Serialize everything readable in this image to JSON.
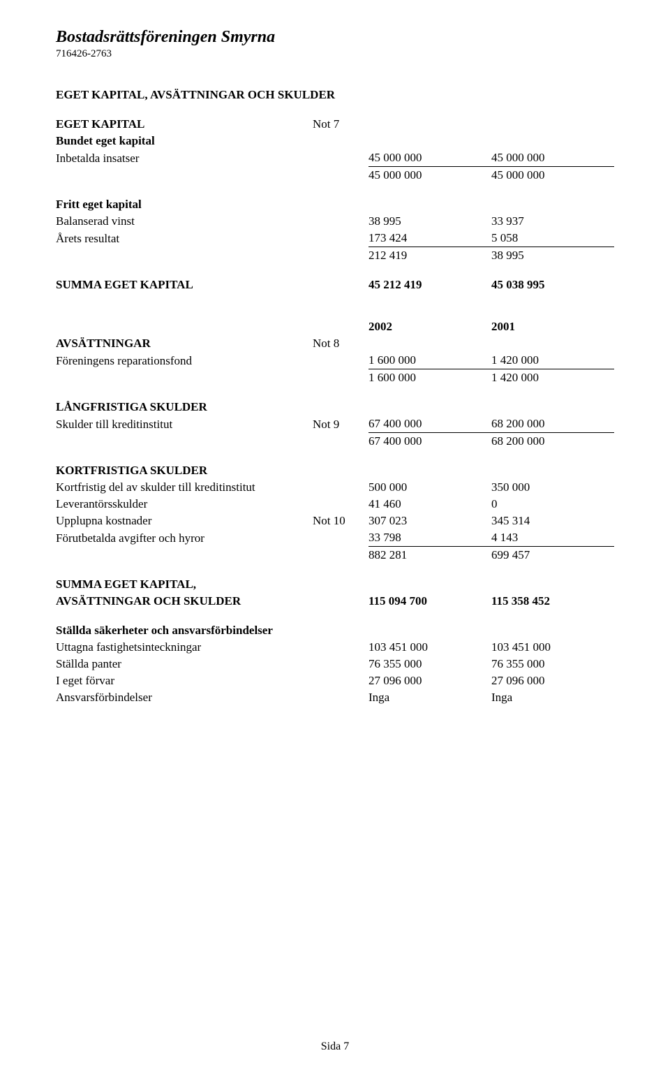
{
  "header": {
    "org_name": "Bostadsrättsföreningen Smyrna",
    "org_number": "716426-2763"
  },
  "title": "EGET KAPITAL, AVSÄTTNINGAR OCH SKULDER",
  "eget_kapital": {
    "heading": "EGET KAPITAL",
    "note": "Not 7",
    "bundet": {
      "heading": "Bundet eget kapital",
      "rows": [
        {
          "label": "Inbetalda insatser",
          "v1": "45 000 000",
          "v2": "45 000 000"
        }
      ],
      "sum": {
        "v1": "45 000 000",
        "v2": "45 000 000"
      }
    },
    "fritt": {
      "heading": "Fritt eget kapital",
      "rows": [
        {
          "label": "Balanserad vinst",
          "v1": "38 995",
          "v2": "33 937"
        },
        {
          "label": "Årets resultat",
          "v1": "173 424",
          "v2": "5 058"
        }
      ],
      "sum": {
        "v1": "212 419",
        "v2": "38 995"
      }
    },
    "summa": {
      "label": "SUMMA EGET KAPITAL",
      "v1": "45 212 419",
      "v2": "45 038 995"
    }
  },
  "avsattningar": {
    "year_row": {
      "v1": "2002",
      "v2": "2001"
    },
    "heading": "AVSÄTTNINGAR",
    "note": "Not 8",
    "rows": [
      {
        "label": "Föreningens reparationsfond",
        "v1": "1 600 000",
        "v2": "1 420 000"
      }
    ],
    "sum": {
      "v1": "1 600 000",
      "v2": "1 420 000"
    }
  },
  "langfristiga": {
    "heading": "LÅNGFRISTIGA SKULDER",
    "rows": [
      {
        "label": "Skulder till kreditinstitut",
        "note": "Not 9",
        "v1": "67 400 000",
        "v2": "68 200 000"
      }
    ],
    "sum": {
      "v1": "67 400 000",
      "v2": "68 200 000"
    }
  },
  "kortfristiga": {
    "heading": "KORTFRISTIGA SKULDER",
    "rows": [
      {
        "label": "Kortfristig del av skulder till kreditinstitut",
        "note": "",
        "v1": "500 000",
        "v2": "350 000"
      },
      {
        "label": "Leverantörsskulder",
        "note": "",
        "v1": "41 460",
        "v2": "0"
      },
      {
        "label": "Upplupna kostnader",
        "note": "Not 10",
        "v1": "307 023",
        "v2": "345 314"
      },
      {
        "label": "Förutbetalda avgifter och hyror",
        "note": "",
        "v1": "33 798",
        "v2": "4 143"
      }
    ],
    "sum": {
      "v1": "882 281",
      "v2": "699 457"
    }
  },
  "total": {
    "label1": "SUMMA EGET KAPITAL,",
    "label2": "AVSÄTTNINGAR OCH SKULDER",
    "v1": "115 094 700",
    "v2": "115 358 452"
  },
  "stallda": {
    "heading": "Ställda säkerheter och ansvarsförbindelser",
    "rows": [
      {
        "label": "Uttagna fastighetsinteckningar",
        "v1": "103 451 000",
        "v2": "103 451 000"
      },
      {
        "label": "Ställda panter",
        "v1": "76 355 000",
        "v2": "76 355 000"
      },
      {
        "label": "I eget förvar",
        "v1": "27 096 000",
        "v2": "27 096 000"
      },
      {
        "label": "Ansvarsförbindelser",
        "v1": "Inga",
        "v2": "Inga"
      }
    ]
  },
  "footer": "Sida 7"
}
